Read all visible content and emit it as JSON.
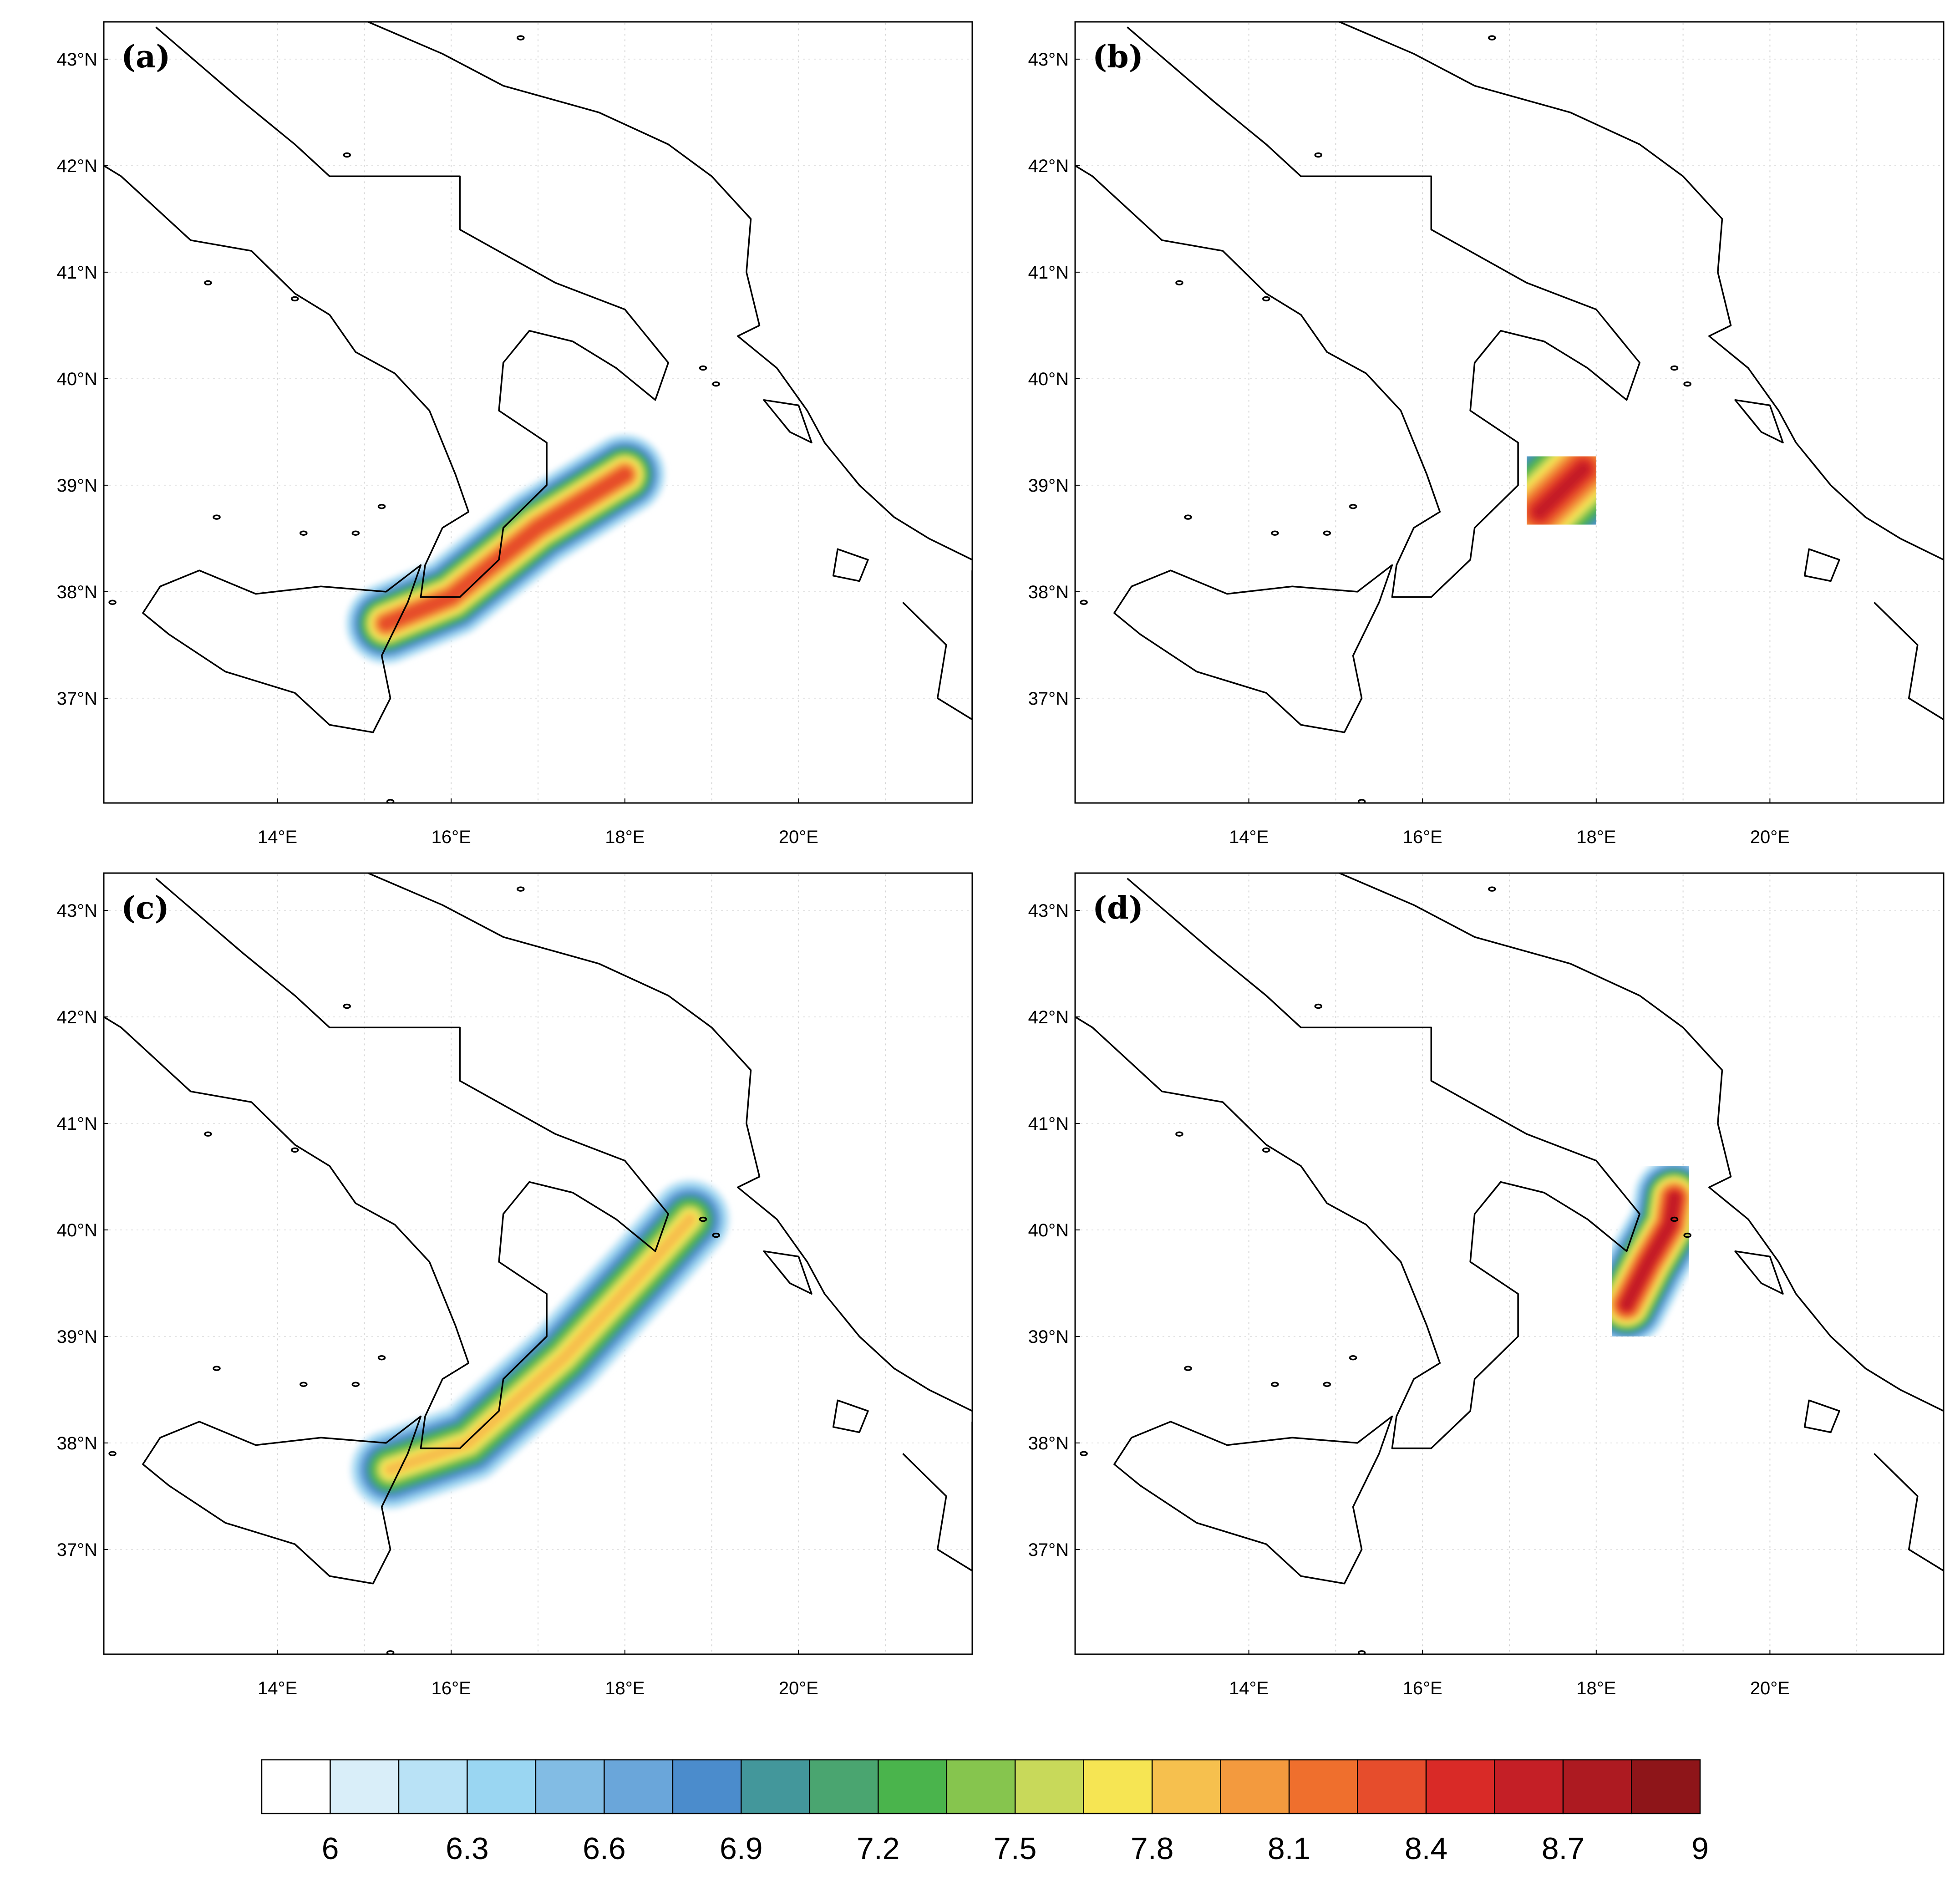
{
  "panels": [
    {
      "label": "(a)",
      "swath": [
        [
          15.25,
          37.7
        ],
        [
          16.0,
          37.95
        ],
        [
          17.0,
          38.6
        ],
        [
          18.0,
          39.1
        ]
      ],
      "core_level": 8.5,
      "core_end": [
        17.75,
        39.05
      ]
    },
    {
      "label": "(b)",
      "swath": [
        [
          17.35,
          38.75
        ],
        [
          17.6,
          38.95
        ],
        [
          17.85,
          39.15
        ]
      ],
      "core_level": 8.7,
      "core_end": [
        17.85,
        39.15
      ]
    },
    {
      "label": "(c)",
      "swath": [
        [
          15.3,
          37.75
        ],
        [
          16.2,
          38.0
        ],
        [
          17.3,
          38.8
        ],
        [
          18.2,
          39.6
        ],
        [
          18.75,
          40.1
        ]
      ],
      "core_level": 8.0,
      "core_end": [
        18.7,
        40.05
      ]
    },
    {
      "label": "(d)",
      "swath": [
        [
          18.35,
          39.3
        ],
        [
          18.6,
          39.7
        ],
        [
          18.85,
          40.05
        ],
        [
          18.9,
          40.3
        ]
      ],
      "core_level": 8.8,
      "core_end": [
        18.9,
        40.1
      ]
    }
  ],
  "axes": {
    "lon_ticks": [
      "14°E",
      "16°E",
      "18°E",
      "20°E"
    ],
    "lon_values": [
      14,
      16,
      18,
      20
    ],
    "lat_ticks": [
      "37°N",
      "38°N",
      "39°N",
      "40°N",
      "41°N",
      "42°N",
      "43°N"
    ],
    "lat_values": [
      37,
      38,
      39,
      40,
      41,
      42,
      43
    ],
    "lon_range": [
      12,
      22
    ],
    "lat_range": [
      36,
      43.35
    ]
  },
  "colorbar": {
    "labels": [
      "6",
      "6.3",
      "6.6",
      "6.9",
      "7.2",
      "7.5",
      "7.8",
      "8.1",
      "8.4",
      "8.7",
      "9"
    ],
    "levels": [
      6.0,
      6.15,
      6.3,
      6.45,
      6.6,
      6.75,
      6.9,
      7.05,
      7.2,
      7.35,
      7.5,
      7.65,
      7.8,
      7.95,
      8.1,
      8.25,
      8.4,
      8.55,
      8.7,
      8.85,
      9.0
    ],
    "colors": [
      "#ffffff",
      "#d9eef9",
      "#b9e2f6",
      "#9ad6f2",
      "#82bce4",
      "#6aa6da",
      "#4b8ccc",
      "#43979b",
      "#4aa570",
      "#4ab44c",
      "#86c54e",
      "#c8d95a",
      "#f6e553",
      "#f6c04e",
      "#f39a3e",
      "#ef6f2d",
      "#e64d2c",
      "#d92a27",
      "#c41f26",
      "#ad1a21",
      "#8e1519"
    ]
  }
}
